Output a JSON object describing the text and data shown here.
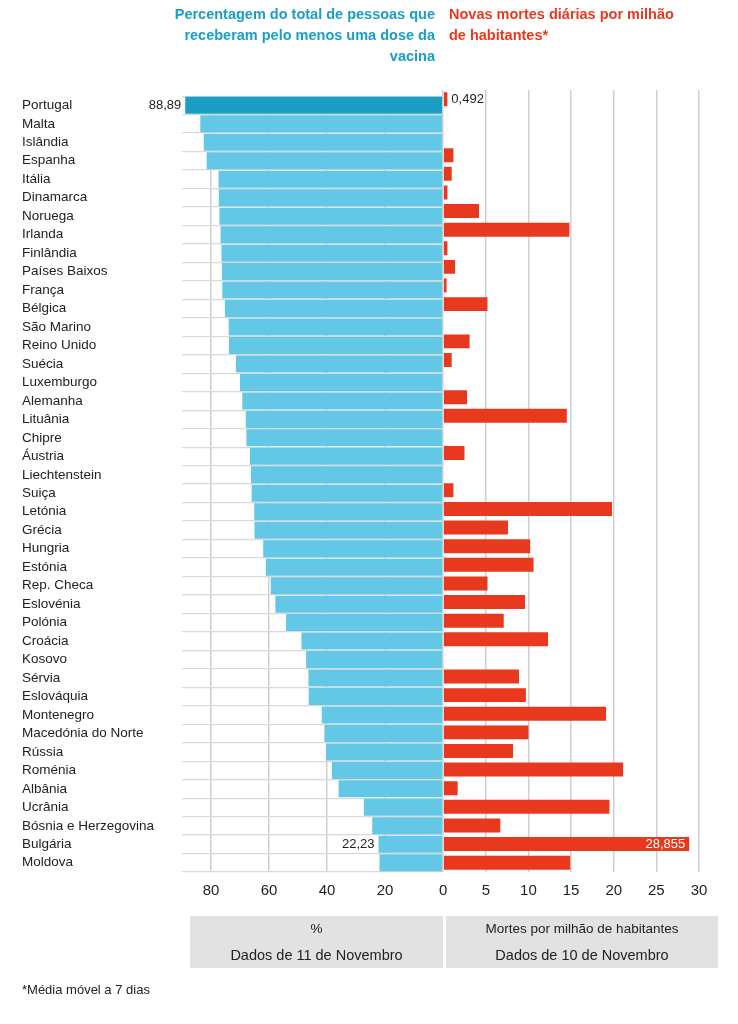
{
  "chart_data": [
    {
      "type": "bar",
      "orientation": "horizontal",
      "title": "Percentagem do total de pessoas que receberam pelo menos uma dose da vacina",
      "xlabel": "%",
      "annotations": [
        "Dados de 11 de Novembro"
      ],
      "categories": [
        "Portugal",
        "Malta",
        "Islândia",
        "Espanha",
        "Itália",
        "Dinamarca",
        "Noruega",
        "Irlanda",
        "Finlândia",
        "Países Baixos",
        "França",
        "Bélgica",
        "São Marino",
        "Reino Unido",
        "Suécia",
        "Luxemburgo",
        "Alemanha",
        "Lituânia",
        "Chipre",
        "Áustria",
        "Liechtenstein",
        "Suiça",
        "Letónia",
        "Grécia",
        "Hungria",
        "Estónia",
        "Rep. Checa",
        "Eslovénia",
        "Polónia",
        "Croácia",
        "Kosovo",
        "Sérvia",
        "Eslováquia",
        "Montenegro",
        "Macedónia do Norte",
        "Rússia",
        "Roménia",
        "Albânia",
        "Ucrânia",
        "Bósnia e Herzegovina",
        "Bulgária",
        "Moldova"
      ],
      "values": [
        88.89,
        83.7,
        82.5,
        81.5,
        77.4,
        77.3,
        77.1,
        76.7,
        76.4,
        76.2,
        76.1,
        75.2,
        73.9,
        73.8,
        71.4,
        70.0,
        69.2,
        68.0,
        67.8,
        66.6,
        66.2,
        66.0,
        65.1,
        65.0,
        62.0,
        61.1,
        59.4,
        57.8,
        54.1,
        48.8,
        47.2,
        46.4,
        46.3,
        41.8,
        40.9,
        40.3,
        38.3,
        36.0,
        27.3,
        24.4,
        22.23,
        21.9
      ],
      "value_labels": [
        "88,89",
        null,
        null,
        null,
        null,
        null,
        null,
        null,
        null,
        null,
        null,
        null,
        null,
        null,
        null,
        null,
        null,
        null,
        null,
        null,
        null,
        null,
        null,
        null,
        null,
        null,
        null,
        null,
        null,
        null,
        null,
        null,
        null,
        null,
        null,
        null,
        null,
        null,
        null,
        null,
        "22,23",
        null
      ],
      "colors": [
        "#1a9ec4",
        "#62c8e6",
        "#62c8e6",
        "#62c8e6",
        "#62c8e6",
        "#62c8e6",
        "#62c8e6",
        "#62c8e6",
        "#62c8e6",
        "#62c8e6",
        "#62c8e6",
        "#62c8e6",
        "#62c8e6",
        "#62c8e6",
        "#62c8e6",
        "#62c8e6",
        "#62c8e6",
        "#62c8e6",
        "#62c8e6",
        "#62c8e6",
        "#62c8e6",
        "#62c8e6",
        "#62c8e6",
        "#62c8e6",
        "#62c8e6",
        "#62c8e6",
        "#62c8e6",
        "#62c8e6",
        "#62c8e6",
        "#62c8e6",
        "#62c8e6",
        "#62c8e6",
        "#62c8e6",
        "#62c8e6",
        "#62c8e6",
        "#62c8e6",
        "#62c8e6",
        "#62c8e6",
        "#62c8e6",
        "#62c8e6",
        "#62c8e6",
        "#62c8e6"
      ],
      "xlim": [
        90,
        0
      ],
      "xticks": [
        80,
        60,
        40,
        20
      ],
      "grid": true
    },
    {
      "type": "bar",
      "orientation": "horizontal",
      "title": "Novas mortes diárias por milhão de habitantes*",
      "xlabel": "Mortes por milhão de habitantes",
      "annotations": [
        "Dados de 10 de Novembro",
        "*Média móvel a 7 dias"
      ],
      "categories": [
        null,
        null,
        null,
        null,
        null,
        null,
        null,
        null,
        null,
        null,
        null,
        null,
        null,
        null,
        null,
        null,
        null,
        null,
        null,
        null,
        null,
        null,
        null,
        null,
        null,
        null,
        null,
        null,
        null,
        null,
        null,
        null,
        null,
        null,
        null,
        null,
        null,
        null,
        null,
        null,
        null,
        null
      ],
      "values": [
        0.492,
        null,
        null,
        1.2,
        1.0,
        0.5,
        4.2,
        14.8,
        0.5,
        1.4,
        0.4,
        5.2,
        null,
        3.1,
        1.0,
        null,
        2.8,
        14.5,
        null,
        2.5,
        null,
        1.2,
        19.8,
        7.6,
        10.2,
        10.6,
        5.2,
        9.6,
        7.1,
        12.3,
        null,
        8.9,
        9.7,
        19.1,
        10.0,
        8.2,
        21.1,
        1.7,
        19.5,
        6.7,
        28.855,
        14.9
      ],
      "value_labels": [
        "0,492",
        null,
        null,
        null,
        null,
        null,
        null,
        null,
        null,
        null,
        null,
        null,
        null,
        null,
        null,
        null,
        null,
        null,
        null,
        null,
        null,
        null,
        null,
        null,
        null,
        null,
        null,
        null,
        null,
        null,
        null,
        null,
        null,
        null,
        null,
        null,
        null,
        null,
        null,
        null,
        "28,855",
        null
      ],
      "color": "#e8391f",
      "xlim": [
        0,
        30
      ],
      "xticks": [
        0,
        5,
        10,
        15,
        20,
        25,
        30
      ],
      "grid": "x",
      "tick_labels": "x"
    }
  ]
}
